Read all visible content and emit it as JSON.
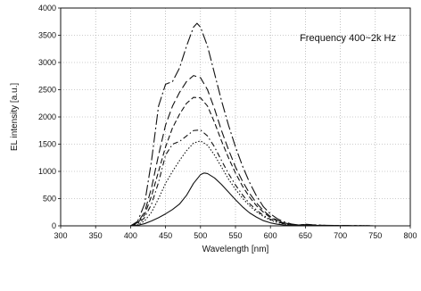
{
  "chart_data": {
    "type": "line",
    "xlabel": "Wavelength [nm]",
    "ylabel": "EL intensity [a.u.]",
    "annotation": "Frequency 400~2k Hz",
    "xlim": [
      300,
      800
    ],
    "ylim": [
      0,
      4000
    ],
    "xticks": [
      300,
      350,
      400,
      450,
      500,
      550,
      600,
      650,
      700,
      750,
      800
    ],
    "yticks": [
      0,
      500,
      1000,
      1500,
      2000,
      2500,
      3000,
      3500,
      4000
    ],
    "grid": true,
    "legend": "none",
    "series": [
      {
        "style": "long-dash-dot",
        "x": [
          400,
          410,
          420,
          430,
          440,
          450,
          460,
          470,
          480,
          490,
          495,
          500,
          510,
          520,
          530,
          540,
          550,
          560,
          570,
          580,
          590,
          600,
          610,
          620,
          630,
          640,
          650,
          660,
          680,
          700,
          750,
          800
        ],
        "y": [
          0,
          80,
          400,
          1200,
          2200,
          2600,
          2650,
          2900,
          3300,
          3650,
          3720,
          3650,
          3300,
          2800,
          2300,
          1850,
          1450,
          1100,
          800,
          550,
          350,
          220,
          130,
          70,
          35,
          15,
          30,
          20,
          10,
          5,
          0,
          0
        ]
      },
      {
        "style": "long-dash",
        "x": [
          400,
          410,
          420,
          430,
          440,
          450,
          460,
          470,
          480,
          490,
          500,
          510,
          520,
          530,
          540,
          550,
          560,
          570,
          580,
          590,
          600,
          610,
          620,
          630,
          640,
          650,
          660,
          680,
          700,
          750,
          800
        ],
        "y": [
          0,
          60,
          250,
          700,
          1300,
          1850,
          2200,
          2450,
          2650,
          2760,
          2720,
          2500,
          2150,
          1750,
          1400,
          1080,
          820,
          600,
          420,
          280,
          170,
          100,
          55,
          25,
          15,
          25,
          15,
          8,
          4,
          0,
          0
        ]
      },
      {
        "style": "medium-dash",
        "x": [
          400,
          410,
          420,
          430,
          440,
          450,
          460,
          470,
          480,
          490,
          500,
          510,
          520,
          530,
          540,
          550,
          560,
          570,
          580,
          590,
          600,
          610,
          620,
          630,
          640,
          650,
          660,
          680,
          700,
          750,
          800
        ],
        "y": [
          0,
          50,
          200,
          550,
          1000,
          1450,
          1800,
          2050,
          2250,
          2360,
          2350,
          2200,
          1900,
          1560,
          1250,
          970,
          730,
          530,
          370,
          250,
          150,
          90,
          50,
          22,
          12,
          22,
          12,
          6,
          3,
          0,
          0
        ]
      },
      {
        "style": "dash-dot",
        "x": [
          400,
          410,
          420,
          430,
          440,
          450,
          460,
          470,
          480,
          490,
          500,
          510,
          520,
          530,
          540,
          550,
          560,
          570,
          580,
          590,
          600,
          610,
          620,
          630,
          640,
          650,
          660,
          680,
          700,
          750,
          800
        ],
        "y": [
          0,
          30,
          150,
          400,
          800,
          1300,
          1500,
          1550,
          1650,
          1750,
          1760,
          1650,
          1450,
          1200,
          960,
          750,
          570,
          410,
          290,
          190,
          120,
          70,
          38,
          18,
          10,
          18,
          10,
          5,
          2,
          0,
          0
        ]
      },
      {
        "style": "dotted",
        "x": [
          400,
          410,
          420,
          430,
          440,
          450,
          460,
          470,
          480,
          490,
          500,
          510,
          520,
          530,
          540,
          550,
          560,
          570,
          580,
          590,
          600,
          610,
          620,
          630,
          640,
          650,
          660,
          680,
          700,
          750,
          800
        ],
        "y": [
          0,
          20,
          90,
          250,
          500,
          780,
          1000,
          1200,
          1380,
          1520,
          1560,
          1480,
          1300,
          1080,
          860,
          670,
          510,
          370,
          260,
          170,
          105,
          60,
          32,
          15,
          8,
          15,
          8,
          4,
          2,
          0,
          0
        ]
      },
      {
        "style": "solid",
        "x": [
          400,
          410,
          420,
          430,
          440,
          450,
          460,
          470,
          480,
          490,
          500,
          505,
          510,
          520,
          530,
          540,
          550,
          560,
          570,
          580,
          590,
          600,
          610,
          620,
          630,
          640,
          650,
          660,
          680,
          700,
          750,
          800
        ],
        "y": [
          0,
          10,
          40,
          90,
          150,
          220,
          300,
          400,
          560,
          780,
          940,
          970,
          960,
          880,
          760,
          620,
          480,
          350,
          240,
          160,
          95,
          55,
          30,
          15,
          8,
          4,
          10,
          6,
          3,
          1,
          0,
          0
        ]
      }
    ]
  }
}
